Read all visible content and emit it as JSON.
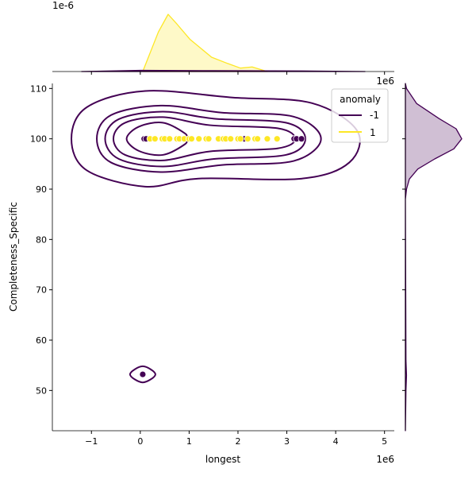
{
  "chart_data": {
    "type": "scatter",
    "plot_kind": "joint plot with KDE contours and marginal KDEs",
    "xlabel": "longest",
    "ylabel": "Completeness_Specific",
    "x_offset_label": "1e6",
    "top_marginal_offset_label": "1e-6",
    "xlim": [
      -1.8,
      5.2
    ],
    "ylim": [
      42,
      111
    ],
    "xticks": [
      -1,
      0,
      1,
      2,
      3,
      4,
      5
    ],
    "xtick_labels": [
      "−1",
      "0",
      "1",
      "2",
      "3",
      "4",
      "5"
    ],
    "yticks": [
      50,
      60,
      70,
      80,
      90,
      100,
      110
    ],
    "ytick_labels": [
      "50",
      "60",
      "70",
      "80",
      "90",
      "100",
      "110"
    ],
    "grid": false,
    "legend": {
      "title": "anomaly",
      "placement": "top-right",
      "entries": [
        {
          "label": "-1",
          "color": "#440154"
        },
        {
          "label": "1",
          "color": "#fde725"
        }
      ]
    },
    "series": [
      {
        "name": "-1",
        "color": "#440154",
        "points": [
          [
            0.08,
            100
          ],
          [
            0.12,
            100
          ],
          [
            2.13,
            100
          ],
          [
            3.15,
            100
          ],
          [
            3.2,
            100
          ],
          [
            3.3,
            100
          ],
          [
            0.05,
            53.2
          ]
        ]
      },
      {
        "name": "1",
        "color": "#fde725",
        "points": [
          [
            0.2,
            100
          ],
          [
            0.3,
            100
          ],
          [
            0.45,
            100
          ],
          [
            0.5,
            100
          ],
          [
            0.6,
            100
          ],
          [
            0.75,
            100
          ],
          [
            0.8,
            100
          ],
          [
            0.9,
            100
          ],
          [
            1.0,
            100
          ],
          [
            1.05,
            100
          ],
          [
            1.2,
            100
          ],
          [
            1.35,
            100
          ],
          [
            1.4,
            100
          ],
          [
            1.6,
            100
          ],
          [
            1.7,
            100
          ],
          [
            1.75,
            100
          ],
          [
            1.85,
            100
          ],
          [
            2.0,
            100
          ],
          [
            2.05,
            100
          ],
          [
            2.2,
            100
          ],
          [
            2.35,
            100
          ],
          [
            2.4,
            100
          ],
          [
            2.6,
            100
          ],
          [
            2.8,
            100
          ]
        ]
      }
    ],
    "kde_contours_anomaly_-1": [
      [
        [
          -1.41,
          100
        ],
        [
          -1.09,
          106.3
        ],
        [
          0.1,
          109.5
        ],
        [
          1.89,
          108.2
        ],
        [
          3.51,
          107.1
        ],
        [
          4.44,
          101.6
        ],
        [
          4.28,
          95.3
        ],
        [
          3.31,
          92.1
        ],
        [
          1.19,
          92.1
        ],
        [
          0.1,
          90.5
        ],
        [
          -1.09,
          93.7
        ]
      ],
      [
        [
          -0.89,
          100
        ],
        [
          -0.6,
          104.7
        ],
        [
          0.42,
          106.6
        ],
        [
          1.67,
          105.2
        ],
        [
          3.14,
          104.4
        ],
        [
          3.7,
          100
        ],
        [
          3.14,
          95.6
        ],
        [
          1.67,
          94.8
        ],
        [
          0.42,
          93.4
        ],
        [
          -0.6,
          95.3
        ]
      ],
      [
        [
          -0.72,
          100
        ],
        [
          -0.44,
          103.9
        ],
        [
          0.46,
          105.4
        ],
        [
          1.51,
          104
        ],
        [
          2.98,
          103.2
        ],
        [
          3.38,
          100
        ],
        [
          2.98,
          96.8
        ],
        [
          1.51,
          96
        ],
        [
          0.46,
          94.5
        ],
        [
          -0.44,
          96
        ]
      ],
      [
        [
          -0.55,
          100
        ],
        [
          -0.31,
          103.2
        ],
        [
          0.46,
          104.3
        ],
        [
          1.43,
          102.7
        ],
        [
          2.81,
          102.1
        ],
        [
          3.17,
          100
        ],
        [
          2.81,
          98.1
        ],
        [
          1.43,
          97.5
        ],
        [
          0.46,
          95.7
        ],
        [
          -0.31,
          96.8
        ]
      ],
      [
        [
          -0.28,
          100
        ],
        [
          -0.03,
          102.4
        ],
        [
          0.46,
          103.2
        ],
        [
          0.91,
          101.1
        ],
        [
          0.94,
          100
        ],
        [
          0.91,
          98.9
        ],
        [
          0.46,
          96.8
        ],
        [
          -0.03,
          97.6
        ]
      ],
      [
        [
          -0.21,
          53.2
        ],
        [
          0.05,
          54.8
        ],
        [
          0.31,
          53.2
        ],
        [
          0.05,
          51.6
        ]
      ]
    ],
    "marginal_x_kde": {
      "series": [
        {
          "name": "1",
          "color": "#fde725",
          "x": [
            0.05,
            0.37,
            0.57,
            0.75,
            1.02,
            1.46,
            1.79,
            2.05,
            2.29,
            2.6
          ],
          "density": [
            0,
            0.69,
            1.0,
            0.83,
            0.56,
            0.25,
            0.14,
            0.06,
            0.08,
            0
          ]
        },
        {
          "name": "-1",
          "color": "#440154",
          "x": [
            -1.2,
            0,
            1.5,
            3.3,
            4.6
          ],
          "density": [
            0,
            0.02,
            0.015,
            0.01,
            0
          ]
        }
      ]
    },
    "marginal_y_kde": {
      "series": [
        {
          "name": "-1",
          "color": "#440154",
          "y": [
            42,
            50,
            53,
            56,
            88,
            90,
            92,
            94,
            96,
            98,
            100,
            102,
            104,
            107,
            110,
            111
          ],
          "density": [
            0,
            0.01,
            0.02,
            0.01,
            0,
            0.02,
            0.07,
            0.22,
            0.52,
            0.86,
            1.0,
            0.9,
            0.6,
            0.2,
            0.02,
            0
          ]
        }
      ]
    }
  }
}
